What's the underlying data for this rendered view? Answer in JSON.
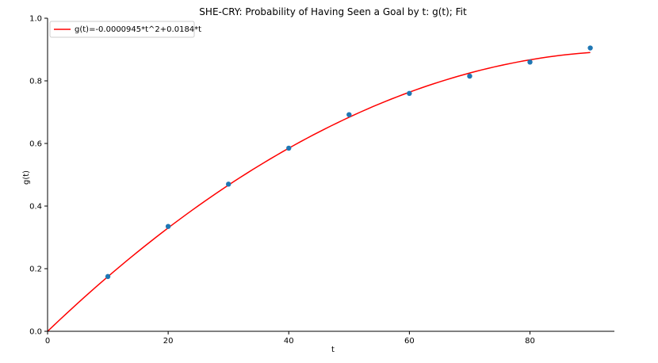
{
  "chart_data": {
    "type": "scatter",
    "title": "SHE-CRY: Probability of Having Seen a Goal by t: g(t); Fit",
    "xlabel": "t",
    "ylabel": "g(t)",
    "xlim": [
      0,
      94
    ],
    "ylim": [
      0.0,
      1.0
    ],
    "x_ticks": [
      0,
      20,
      40,
      60,
      80
    ],
    "y_ticks": [
      0.0,
      0.2,
      0.4,
      0.6,
      0.8,
      1.0
    ],
    "x_tick_labels": [
      "0",
      "20",
      "40",
      "60",
      "80"
    ],
    "y_tick_labels": [
      "0.0",
      "0.2",
      "0.4",
      "0.6",
      "0.8",
      "1.0"
    ],
    "grid": false,
    "legend_position": "top-left",
    "points": {
      "x": [
        10,
        20,
        30,
        40,
        50,
        60,
        70,
        80,
        90
      ],
      "y": [
        0.175,
        0.335,
        0.47,
        0.585,
        0.692,
        0.76,
        0.815,
        0.86,
        0.905
      ],
      "color": "#1f77b4"
    },
    "fit": {
      "name": "g(t)=-0.0000945*t^2+0.0184*t",
      "a": -9.45e-05,
      "b": 0.0184,
      "x_range": [
        0,
        90
      ],
      "color": "#ff0000"
    }
  }
}
